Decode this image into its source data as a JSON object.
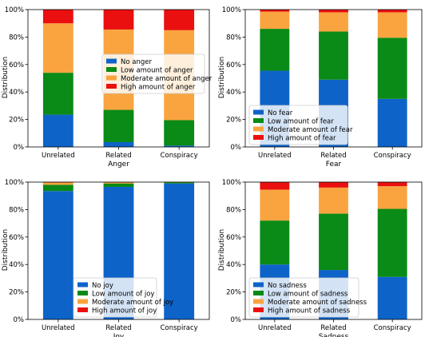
{
  "colors": {
    "none": "#0e63c8",
    "low": "#0a8a16",
    "moderate": "#f9a43f",
    "high": "#ea1010"
  },
  "ylabel": "Distribution",
  "yticks": [
    "0%",
    "20%",
    "40%",
    "60%",
    "80%",
    "100%"
  ],
  "chart_data": [
    {
      "type": "bar",
      "stacked": true,
      "xlabel": "Anger",
      "categories": [
        "Unrelated",
        "Related",
        "Conspiracy"
      ],
      "ylim": [
        0,
        100
      ],
      "legend_position": "center-right",
      "series": [
        {
          "name": "No anger",
          "values": [
            23.5,
            3.5,
            1.0
          ]
        },
        {
          "name": "Low amount of anger",
          "values": [
            30.5,
            23.5,
            18.5
          ]
        },
        {
          "name": "Moderate amount of anger",
          "values": [
            36.0,
            58.5,
            65.5
          ]
        },
        {
          "name": "High amount of anger",
          "values": [
            10.0,
            14.5,
            15.0
          ]
        }
      ]
    },
    {
      "type": "bar",
      "stacked": true,
      "xlabel": "Fear",
      "categories": [
        "Unrelated",
        "Related",
        "Conspiracy"
      ],
      "ylim": [
        0,
        100
      ],
      "legend_position": "lower-left",
      "series": [
        {
          "name": "No fear",
          "values": [
            55.5,
            49.0,
            35.0
          ]
        },
        {
          "name": "Low amount of fear",
          "values": [
            30.5,
            35.0,
            44.5
          ]
        },
        {
          "name": "Moderate amount of fear",
          "values": [
            12.5,
            14.0,
            18.5
          ]
        },
        {
          "name": "High amount of fear",
          "values": [
            1.5,
            2.0,
            2.0
          ]
        }
      ]
    },
    {
      "type": "bar",
      "stacked": true,
      "xlabel": "Joy",
      "categories": [
        "Unrelated",
        "Related",
        "Conspiracy"
      ],
      "ylim": [
        0,
        100
      ],
      "legend_position": "lower-center",
      "series": [
        {
          "name": "No joy",
          "values": [
            93.5,
            96.5,
            99.0
          ]
        },
        {
          "name": "Low amount of joy",
          "values": [
            4.5,
            2.5,
            0.7
          ]
        },
        {
          "name": "Moderate amount of joy",
          "values": [
            1.7,
            0.8,
            0.3
          ]
        },
        {
          "name": "High amount of joy",
          "values": [
            0.3,
            0.2,
            0.0
          ]
        }
      ]
    },
    {
      "type": "bar",
      "stacked": true,
      "xlabel": "Sadness",
      "categories": [
        "Unrelated",
        "Related",
        "Conspiracy"
      ],
      "ylim": [
        0,
        100
      ],
      "legend_position": "lower-center",
      "series": [
        {
          "name": "No sadness",
          "values": [
            40.0,
            36.0,
            31.0
          ]
        },
        {
          "name": "Low amount of sadness",
          "values": [
            32.0,
            41.0,
            49.5
          ]
        },
        {
          "name": "Moderate amount of sadness",
          "values": [
            22.5,
            19.0,
            16.5
          ]
        },
        {
          "name": "High amount of sadness",
          "values": [
            5.5,
            4.0,
            3.0
          ]
        }
      ]
    }
  ]
}
